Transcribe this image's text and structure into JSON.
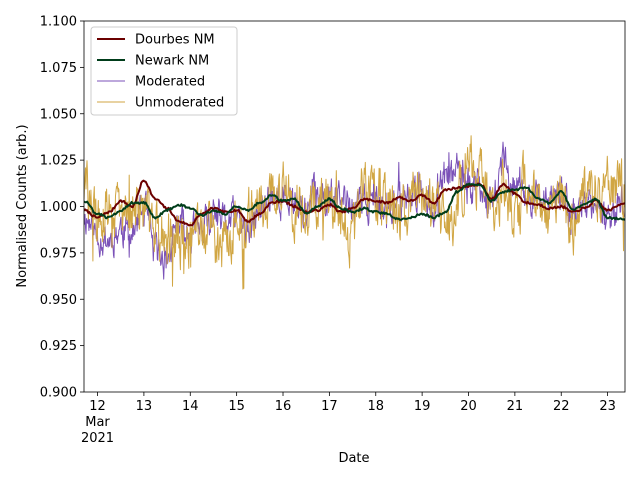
{
  "chart_data": {
    "type": "line",
    "xlabel": "Date",
    "ylabel": "Normalised Counts (arb.)",
    "x_start": "2021-03-11T17:00",
    "x_end": "2021-03-23T09:00",
    "ylim": [
      0.9,
      1.1
    ],
    "yticks": [
      0.9,
      0.925,
      0.95,
      0.975,
      1.0,
      1.025,
      1.05,
      1.075,
      1.1
    ],
    "ytick_labels": [
      "0.900",
      "0.925",
      "0.950",
      "0.975",
      "1.000",
      "1.025",
      "1.050",
      "1.075",
      "1.100"
    ],
    "xticks": [
      {
        "date": "2021-03-12",
        "label": "12",
        "sub1": "Mar",
        "sub2": "2021"
      },
      {
        "date": "2021-03-13",
        "label": "13"
      },
      {
        "date": "2021-03-14",
        "label": "14"
      },
      {
        "date": "2021-03-15",
        "label": "15"
      },
      {
        "date": "2021-03-16",
        "label": "16"
      },
      {
        "date": "2021-03-17",
        "label": "17"
      },
      {
        "date": "2021-03-18",
        "label": "18"
      },
      {
        "date": "2021-03-19",
        "label": "19"
      },
      {
        "date": "2021-03-20",
        "label": "20"
      },
      {
        "date": "2021-03-21",
        "label": "21"
      },
      {
        "date": "2021-03-22",
        "label": "22"
      },
      {
        "date": "2021-03-23",
        "label": "23"
      }
    ],
    "grid": false,
    "legend_position": "top-left",
    "series": [
      {
        "name": "Dourbes NM",
        "color": "#6b0000",
        "x": [
          "2021-03-11T17:00",
          "2021-03-12T00:00",
          "2021-03-12T06:00",
          "2021-03-12T12:00",
          "2021-03-12T18:00",
          "2021-03-13T00:00",
          "2021-03-13T06:00",
          "2021-03-13T12:00",
          "2021-03-13T18:00",
          "2021-03-14T00:00",
          "2021-03-14T06:00",
          "2021-03-14T12:00",
          "2021-03-14T18:00",
          "2021-03-15T00:00",
          "2021-03-15T06:00",
          "2021-03-15T12:00",
          "2021-03-15T18:00",
          "2021-03-16T00:00",
          "2021-03-16T06:00",
          "2021-03-16T12:00",
          "2021-03-16T18:00",
          "2021-03-17T00:00",
          "2021-03-17T06:00",
          "2021-03-17T12:00",
          "2021-03-17T18:00",
          "2021-03-18T00:00",
          "2021-03-18T06:00",
          "2021-03-18T12:00",
          "2021-03-18T18:00",
          "2021-03-19T00:00",
          "2021-03-19T06:00",
          "2021-03-19T12:00",
          "2021-03-19T18:00",
          "2021-03-20T00:00",
          "2021-03-20T06:00",
          "2021-03-20T12:00",
          "2021-03-20T18:00",
          "2021-03-21T00:00",
          "2021-03-21T06:00",
          "2021-03-21T12:00",
          "2021-03-21T18:00",
          "2021-03-22T00:00",
          "2021-03-22T06:00",
          "2021-03-22T12:00",
          "2021-03-22T18:00",
          "2021-03-23T00:00",
          "2021-03-23T09:00"
        ],
        "values": [
          0.998,
          0.994,
          0.997,
          1.003,
          1.0,
          1.014,
          1.004,
          0.999,
          0.992,
          0.99,
          0.996,
          0.999,
          0.997,
          0.998,
          0.992,
          0.996,
          1.002,
          1.003,
          1.0,
          0.997,
          0.998,
          1.001,
          0.997,
          0.999,
          1.004,
          1.003,
          1.002,
          1.005,
          1.003,
          1.006,
          1.002,
          1.009,
          1.01,
          1.011,
          1.012,
          1.004,
          1.012,
          1.007,
          1.002,
          1.001,
          0.999,
          1.0,
          0.997,
          0.999,
          1.003,
          0.998,
          1.002
        ]
      },
      {
        "name": "Newark NM",
        "color": "#003d1a",
        "x": [
          "2021-03-11T17:00",
          "2021-03-12T00:00",
          "2021-03-12T06:00",
          "2021-03-12T12:00",
          "2021-03-12T18:00",
          "2021-03-13T00:00",
          "2021-03-13T06:00",
          "2021-03-13T12:00",
          "2021-03-13T18:00",
          "2021-03-14T00:00",
          "2021-03-14T06:00",
          "2021-03-14T12:00",
          "2021-03-14T18:00",
          "2021-03-15T00:00",
          "2021-03-15T06:00",
          "2021-03-15T12:00",
          "2021-03-15T18:00",
          "2021-03-16T00:00",
          "2021-03-16T06:00",
          "2021-03-16T12:00",
          "2021-03-16T18:00",
          "2021-03-17T00:00",
          "2021-03-17T06:00",
          "2021-03-17T12:00",
          "2021-03-17T18:00",
          "2021-03-18T00:00",
          "2021-03-18T06:00",
          "2021-03-18T12:00",
          "2021-03-18T18:00",
          "2021-03-19T00:00",
          "2021-03-19T06:00",
          "2021-03-19T12:00",
          "2021-03-19T18:00",
          "2021-03-20T00:00",
          "2021-03-20T06:00",
          "2021-03-20T12:00",
          "2021-03-20T18:00",
          "2021-03-21T00:00",
          "2021-03-21T06:00",
          "2021-03-21T12:00",
          "2021-03-21T18:00",
          "2021-03-22T00:00",
          "2021-03-22T06:00",
          "2021-03-22T12:00",
          "2021-03-22T18:00",
          "2021-03-23T00:00",
          "2021-03-23T09:00"
        ],
        "values": [
          1.003,
          0.996,
          0.994,
          0.998,
          1.002,
          1.002,
          0.994,
          0.998,
          1.001,
          0.999,
          0.995,
          0.998,
          0.996,
          1.0,
          0.998,
          1.002,
          1.006,
          1.003,
          1.004,
          0.996,
          1.0,
          1.004,
          0.999,
          0.997,
          0.999,
          0.997,
          0.996,
          0.993,
          0.994,
          0.996,
          0.994,
          0.997,
          1.008,
          1.012,
          1.012,
          1.003,
          1.008,
          1.009,
          1.01,
          1.004,
          1.002,
          1.008,
          0.998,
          1.001,
          1.004,
          0.994,
          0.993
        ]
      },
      {
        "name": "Moderated",
        "color": "#7b52b8",
        "seed": 11,
        "noise": 0.014,
        "x": [
          "2021-03-11T17:00",
          "2021-03-12T00:00",
          "2021-03-12T06:00",
          "2021-03-12T12:00",
          "2021-03-12T18:00",
          "2021-03-13T00:00",
          "2021-03-13T06:00",
          "2021-03-13T12:00",
          "2021-03-13T18:00",
          "2021-03-14T00:00",
          "2021-03-14T06:00",
          "2021-03-14T12:00",
          "2021-03-14T18:00",
          "2021-03-15T00:00",
          "2021-03-15T06:00",
          "2021-03-15T12:00",
          "2021-03-15T18:00",
          "2021-03-16T00:00",
          "2021-03-16T06:00",
          "2021-03-16T12:00",
          "2021-03-16T18:00",
          "2021-03-17T00:00",
          "2021-03-17T06:00",
          "2021-03-17T12:00",
          "2021-03-17T18:00",
          "2021-03-18T00:00",
          "2021-03-18T06:00",
          "2021-03-18T12:00",
          "2021-03-18T18:00",
          "2021-03-19T00:00",
          "2021-03-19T06:00",
          "2021-03-19T12:00",
          "2021-03-19T18:00",
          "2021-03-20T00:00",
          "2021-03-20T06:00",
          "2021-03-20T12:00",
          "2021-03-20T18:00",
          "2021-03-21T00:00",
          "2021-03-21T06:00",
          "2021-03-21T12:00",
          "2021-03-21T18:00",
          "2021-03-22T00:00",
          "2021-03-22T06:00",
          "2021-03-22T12:00",
          "2021-03-22T18:00",
          "2021-03-23T00:00",
          "2021-03-23T09:00"
        ],
        "values": [
          0.995,
          0.985,
          0.982,
          0.988,
          0.985,
          0.998,
          0.975,
          0.972,
          0.99,
          0.985,
          0.988,
          0.993,
          0.992,
          0.994,
          0.985,
          0.997,
          1.008,
          1.003,
          1.004,
          0.998,
          1.008,
          1.006,
          1.003,
          1.0,
          1.004,
          1.0,
          0.998,
          1.003,
          1.006,
          1.01,
          1.0,
          1.015,
          1.018,
          1.01,
          1.012,
          1.0,
          1.025,
          1.012,
          1.005,
          1.006,
          1.0,
          1.006,
          0.995,
          1.0,
          1.005,
          0.99,
          1.003
        ]
      },
      {
        "name": "Unmoderated",
        "color": "#d1a643",
        "seed": 29,
        "noise": 0.022,
        "x": [
          "2021-03-11T17:00",
          "2021-03-12T00:00",
          "2021-03-12T06:00",
          "2021-03-12T12:00",
          "2021-03-12T18:00",
          "2021-03-13T00:00",
          "2021-03-13T06:00",
          "2021-03-13T12:00",
          "2021-03-13T18:00",
          "2021-03-14T00:00",
          "2021-03-14T06:00",
          "2021-03-14T12:00",
          "2021-03-14T18:00",
          "2021-03-15T00:00",
          "2021-03-15T06:00",
          "2021-03-15T12:00",
          "2021-03-15T18:00",
          "2021-03-16T00:00",
          "2021-03-16T06:00",
          "2021-03-16T12:00",
          "2021-03-16T18:00",
          "2021-03-17T00:00",
          "2021-03-17T06:00",
          "2021-03-17T12:00",
          "2021-03-17T18:00",
          "2021-03-18T00:00",
          "2021-03-18T06:00",
          "2021-03-18T12:00",
          "2021-03-18T18:00",
          "2021-03-19T00:00",
          "2021-03-19T06:00",
          "2021-03-19T12:00",
          "2021-03-19T18:00",
          "2021-03-20T00:00",
          "2021-03-20T06:00",
          "2021-03-20T12:00",
          "2021-03-20T18:00",
          "2021-03-21T00:00",
          "2021-03-21T06:00",
          "2021-03-21T12:00",
          "2021-03-21T18:00",
          "2021-03-22T00:00",
          "2021-03-22T06:00",
          "2021-03-22T12:00",
          "2021-03-22T18:00",
          "2021-03-23T00:00",
          "2021-03-23T09:00"
        ],
        "values": [
          1.01,
          0.99,
          0.998,
          0.995,
          1.0,
          0.995,
          0.99,
          0.985,
          0.978,
          0.983,
          0.99,
          0.985,
          0.98,
          0.995,
          0.988,
          1.002,
          1.004,
          1.008,
          1.0,
          0.998,
          1.006,
          1.003,
          0.995,
          0.985,
          1.008,
          1.01,
          1.002,
          0.992,
          1.005,
          1.01,
          0.995,
          0.99,
          1.0,
          1.025,
          1.012,
          0.998,
          1.012,
          0.995,
          1.012,
          1.008,
          0.992,
          1.004,
          0.985,
          1.005,
          1.006,
          1.01,
          1.006
        ]
      }
    ]
  }
}
